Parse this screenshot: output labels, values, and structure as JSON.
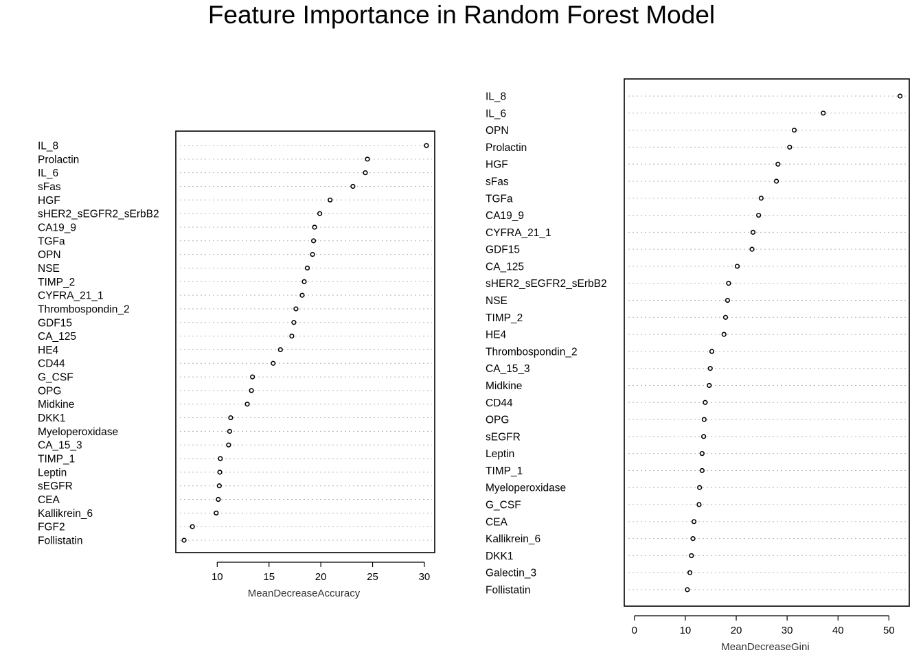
{
  "title": "Feature Importance in Random Forest Model",
  "chart_data": [
    {
      "type": "scatter",
      "subtype": "dotchart",
      "xlabel": "MeanDecreaseAccuracy",
      "ylabel": "",
      "xlim": [
        6,
        31
      ],
      "xticks": [
        10,
        15,
        20,
        25,
        30
      ],
      "grid": "dotted horizontal",
      "categories": [
        "IL_8",
        "Prolactin",
        "IL_6",
        "sFas",
        "HGF",
        "sHER2_sEGFR2_sErbB2",
        "CA19_9",
        "TGFa",
        "OPN",
        "NSE",
        "TIMP_2",
        "CYFRA_21_1",
        "Thrombospondin_2",
        "GDF15",
        "CA_125",
        "HE4",
        "CD44",
        "G_CSF",
        "OPG",
        "Midkine",
        "DKK1",
        "Myeloperoxidase",
        "CA_15_3",
        "TIMP_1",
        "Leptin",
        "sEGFR",
        "CEA",
        "Kallikrein_6",
        "FGF2",
        "Follistatin"
      ],
      "values": [
        30.2,
        24.5,
        24.3,
        23.1,
        20.9,
        19.9,
        19.4,
        19.3,
        19.2,
        18.7,
        18.4,
        18.2,
        17.6,
        17.4,
        17.2,
        16.1,
        15.4,
        13.4,
        13.3,
        12.9,
        11.3,
        11.2,
        11.1,
        10.3,
        10.25,
        10.2,
        10.1,
        9.9,
        7.6,
        6.8
      ]
    },
    {
      "type": "scatter",
      "subtype": "dotchart",
      "xlabel": "MeanDecreaseGini",
      "ylabel": "",
      "xlim": [
        -2,
        54
      ],
      "xticks": [
        0,
        10,
        20,
        30,
        40,
        50
      ],
      "grid": "dotted horizontal",
      "categories": [
        "IL_8",
        "IL_6",
        "OPN",
        "Prolactin",
        "HGF",
        "sFas",
        "TGFa",
        "CA19_9",
        "CYFRA_21_1",
        "GDF15",
        "CA_125",
        "sHER2_sEGFR2_sErbB2",
        "NSE",
        "TIMP_2",
        "HE4",
        "Thrombospondin_2",
        "CA_15_3",
        "Midkine",
        "CD44",
        "OPG",
        "sEGFR",
        "Leptin",
        "TIMP_1",
        "Myeloperoxidase",
        "G_CSF",
        "CEA",
        "Kallikrein_6",
        "DKK1",
        "Galectin_3",
        "Follistatin"
      ],
      "values": [
        52.2,
        37.1,
        31.4,
        30.5,
        28.2,
        27.9,
        24.9,
        24.4,
        23.3,
        23.1,
        20.2,
        18.5,
        18.3,
        17.9,
        17.6,
        15.2,
        14.9,
        14.7,
        13.9,
        13.7,
        13.6,
        13.3,
        13.3,
        12.8,
        12.7,
        11.7,
        11.5,
        11.2,
        10.9,
        10.4
      ]
    }
  ]
}
